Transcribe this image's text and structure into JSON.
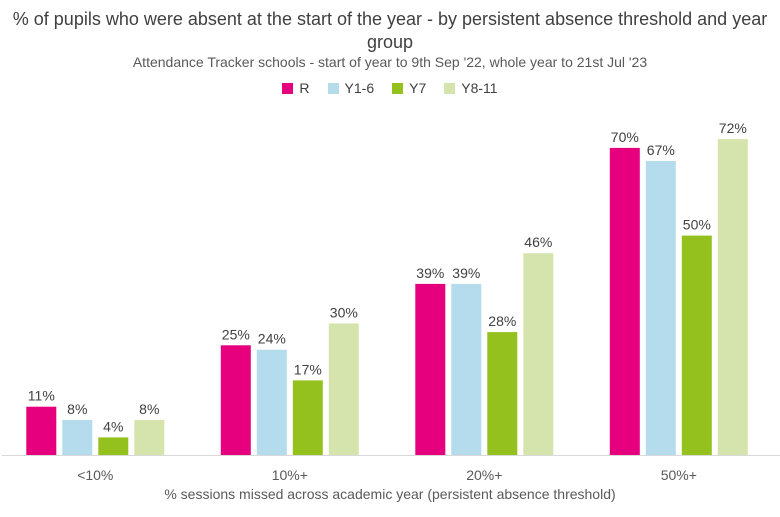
{
  "chart_data": {
    "type": "bar",
    "title": "% of pupils who were absent at the start of the year - by persistent absence threshold and year group",
    "subtitle": "Attendance Tracker schools - start of year to 9th Sep '22, whole year to 21st Jul '23",
    "xlabel": "% sessions missed across academic year (persistent absence threshold)",
    "ylabel": "",
    "categories": [
      "<10%",
      "10%+",
      "20%+",
      "50%+"
    ],
    "ylim": [
      0,
      80
    ],
    "legend_position": "top-center",
    "grid": false,
    "series": [
      {
        "name": "R",
        "color": "#e6007e",
        "values": [
          11,
          25,
          39,
          70
        ],
        "labels": [
          "11%",
          "25%",
          "39%",
          "70%"
        ]
      },
      {
        "name": "Y1-6",
        "color": "#b4dcec",
        "values": [
          8,
          24,
          39,
          67
        ],
        "labels": [
          "8%",
          "24%",
          "39%",
          "67%"
        ]
      },
      {
        "name": "Y7",
        "color": "#95c11f",
        "values": [
          4,
          17,
          28,
          50
        ],
        "labels": [
          "4%",
          "17%",
          "28%",
          "50%"
        ]
      },
      {
        "name": "Y8-11",
        "color": "#d5e4ad",
        "values": [
          8,
          30,
          46,
          72
        ],
        "labels": [
          "8%",
          "30%",
          "46%",
          "72%"
        ]
      }
    ]
  }
}
